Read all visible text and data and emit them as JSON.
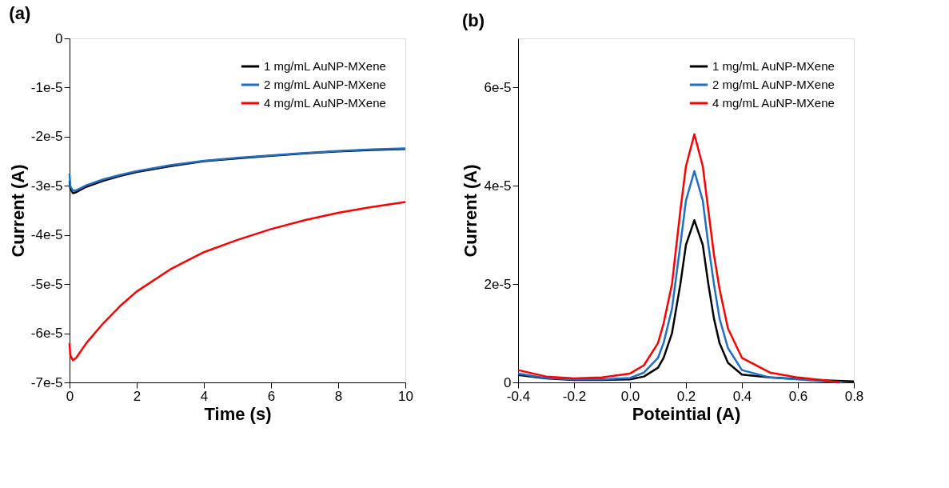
{
  "chart_data": [
    {
      "type": "line",
      "title": "(a)",
      "xlabel": "Time (s)",
      "ylabel": "Current (A)",
      "xlim": [
        0,
        10
      ],
      "xticks": [
        0,
        2,
        4,
        6,
        8,
        10
      ],
      "ylim": [
        -7e-05,
        0
      ],
      "yticks": [
        {
          "value": -7e-05,
          "label": "-7e-5"
        },
        {
          "value": -6e-05,
          "label": "-6e-5"
        },
        {
          "value": -5e-05,
          "label": "-5e-5"
        },
        {
          "value": -4e-05,
          "label": "-4e-5"
        },
        {
          "value": -3e-05,
          "label": "-3e-5"
        },
        {
          "value": -2e-05,
          "label": "-2e-5"
        },
        {
          "value": -1e-05,
          "label": "-1e-5"
        },
        {
          "value": 0,
          "label": "0"
        }
      ],
      "grid": false,
      "legend": "top right",
      "marker": "none",
      "line_style": "solid",
      "series": [
        {
          "name": "1 mg/mL AuNP-MXene",
          "color": "#000000",
          "x": [
            0,
            0.02,
            0.1,
            0.2,
            0.5,
            1,
            1.5,
            2,
            3,
            4,
            5,
            6,
            7,
            8,
            9,
            10
          ],
          "values": [
            -2.9e-05,
            -3.05e-05,
            -3.15e-05,
            -3.13e-05,
            -3.02e-05,
            -2.9e-05,
            -2.8e-05,
            -2.72e-05,
            -2.6e-05,
            -2.5e-05,
            -2.44e-05,
            -2.39e-05,
            -2.34e-05,
            -2.3e-05,
            -2.27e-05,
            -2.25e-05
          ]
        },
        {
          "name": "2 mg/mL AuNP-MXene",
          "color": "#1f6fc5",
          "x": [
            0,
            0.02,
            0.1,
            0.2,
            0.5,
            1,
            1.5,
            2,
            3,
            4,
            5,
            6,
            7,
            8,
            9,
            10
          ],
          "values": [
            -2.75e-05,
            -3e-05,
            -3.1e-05,
            -3.09e-05,
            -2.99e-05,
            -2.87e-05,
            -2.78e-05,
            -2.7e-05,
            -2.58e-05,
            -2.49e-05,
            -2.43e-05,
            -2.38e-05,
            -2.33e-05,
            -2.29e-05,
            -2.26e-05,
            -2.24e-05
          ]
        },
        {
          "name": "4 mg/mL AuNP-MXene",
          "color": "#ff0000",
          "x": [
            0,
            0.02,
            0.1,
            0.2,
            0.5,
            1,
            1.5,
            2,
            3,
            4,
            5,
            6,
            7,
            8,
            9,
            10
          ],
          "values": [
            -6.2e-05,
            -6.45e-05,
            -6.55e-05,
            -6.5e-05,
            -6.2e-05,
            -5.8e-05,
            -5.45e-05,
            -5.15e-05,
            -4.7e-05,
            -4.35e-05,
            -4.1e-05,
            -3.88e-05,
            -3.7e-05,
            -3.55e-05,
            -3.43e-05,
            -3.33e-05
          ]
        }
      ]
    },
    {
      "type": "line",
      "title": "(b)",
      "xlabel": "Poteintial (A)",
      "ylabel": "Current (A)",
      "xlim": [
        -0.4,
        0.8
      ],
      "xticks": [
        {
          "value": -0.4,
          "label": "-0.4"
        },
        {
          "value": -0.2,
          "label": "-0.2"
        },
        {
          "value": 0,
          "label": "0.0"
        },
        {
          "value": 0.2,
          "label": "0.2"
        },
        {
          "value": 0.4,
          "label": "0.4"
        },
        {
          "value": 0.6,
          "label": "0.6"
        },
        {
          "value": 0.8,
          "label": "0.8"
        }
      ],
      "ylim": [
        0,
        7e-05
      ],
      "yticks": [
        {
          "value": 0,
          "label": "0"
        },
        {
          "value": 2e-05,
          "label": "2e-5"
        },
        {
          "value": 4e-05,
          "label": "4e-5"
        },
        {
          "value": 6e-05,
          "label": "6e-5"
        }
      ],
      "grid": false,
      "legend": "top right",
      "marker": "none",
      "line_style": "solid",
      "series": [
        {
          "name": "1 mg/mL AuNP-MXene",
          "color": "#000000",
          "x": [
            -0.4,
            -0.3,
            -0.2,
            -0.1,
            0.0,
            0.05,
            0.1,
            0.12,
            0.15,
            0.18,
            0.2,
            0.23,
            0.26,
            0.28,
            0.3,
            0.32,
            0.35,
            0.4,
            0.5,
            0.6,
            0.7,
            0.8
          ],
          "values": [
            1.5e-06,
            8e-07,
            5e-07,
            5e-07,
            6e-07,
            1.2e-06,
            3e-06,
            5e-06,
            1e-05,
            2e-05,
            2.8e-05,
            3.3e-05,
            2.8e-05,
            2e-05,
            1.3e-05,
            8e-06,
            4e-06,
            1.6e-06,
            1e-06,
            7e-07,
            4e-07,
            2e-07
          ]
        },
        {
          "name": "2 mg/mL AuNP-MXene",
          "color": "#1f6fc5",
          "x": [
            -0.4,
            -0.3,
            -0.2,
            -0.1,
            0.0,
            0.05,
            0.1,
            0.12,
            0.15,
            0.18,
            0.2,
            0.23,
            0.26,
            0.28,
            0.3,
            0.32,
            0.35,
            0.4,
            0.5,
            0.6,
            0.7,
            0.76
          ],
          "values": [
            1.8e-06,
            9e-07,
            6e-07,
            6e-07,
            9e-07,
            2e-06,
            5e-06,
            8e-06,
            1.5e-05,
            2.8e-05,
            3.7e-05,
            4.3e-05,
            3.7e-05,
            2.8e-05,
            2e-05,
            1.3e-05,
            7e-06,
            2.5e-06,
            1e-06,
            6e-07,
            2e-07,
            0
          ]
        },
        {
          "name": "4 mg/mL AuNP-MXene",
          "color": "#ff0000",
          "x": [
            -0.4,
            -0.3,
            -0.2,
            -0.1,
            0.0,
            0.05,
            0.1,
            0.12,
            0.15,
            0.18,
            0.2,
            0.23,
            0.26,
            0.28,
            0.3,
            0.32,
            0.35,
            0.4,
            0.5,
            0.6,
            0.7,
            0.75
          ],
          "values": [
            2.5e-06,
            1.2e-06,
            8e-07,
            1e-06,
            1.8e-06,
            3.5e-06,
            8e-06,
            1.2e-05,
            2e-05,
            3.5e-05,
            4.4e-05,
            5.05e-05,
            4.4e-05,
            3.5e-05,
            2.6e-05,
            1.9e-05,
            1.1e-05,
            5e-06,
            2e-06,
            1e-06,
            4e-07,
            0
          ]
        }
      ]
    }
  ]
}
